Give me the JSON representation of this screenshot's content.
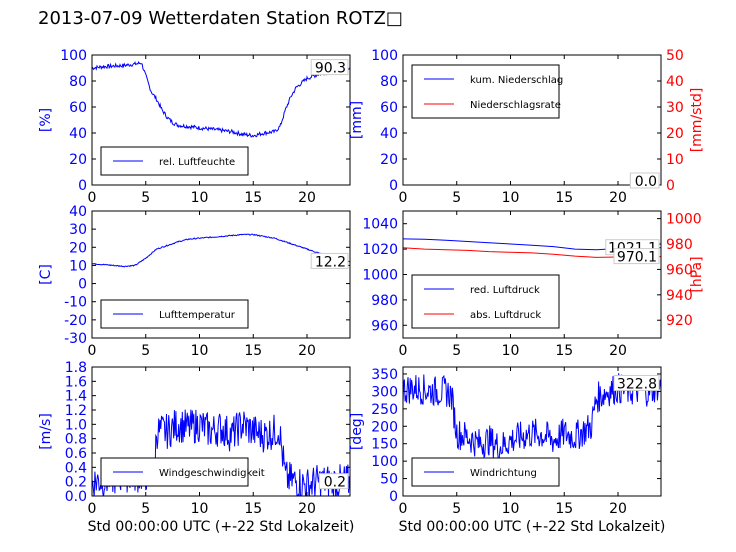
{
  "title": "2013-07-09 Wetterdaten Station ROTZ□",
  "colors": {
    "left": "#0000ff",
    "right": "#ff0000",
    "frame": "#000000"
  },
  "chart_data": [
    {
      "id": "humidity",
      "type": "line",
      "xlim": [
        0,
        24
      ],
      "xticks": [
        0,
        5,
        10,
        15,
        20
      ],
      "ylim": [
        0,
        100
      ],
      "yticks": [
        0,
        20,
        40,
        60,
        80,
        100
      ],
      "ylabel": "[%]",
      "xlabel": "",
      "annotation": "90.3",
      "legend_position": "lower-left",
      "series": [
        {
          "name": "rel. Luftfeuchte",
          "color": "#0000ff",
          "axis": "left",
          "noise": 1.5,
          "x": [
            0,
            1,
            2,
            3,
            4,
            4.6,
            5,
            5.5,
            6,
            6.5,
            7,
            7.5,
            8,
            9,
            10,
            11,
            12,
            13,
            14,
            15,
            16,
            17,
            17.5,
            18,
            18.5,
            19,
            20,
            21,
            22,
            23,
            24
          ],
          "y": [
            90,
            91,
            91.5,
            92,
            93,
            94,
            84,
            72,
            66,
            58,
            52,
            48,
            46,
            45,
            44,
            43,
            42,
            41,
            39,
            38,
            40,
            41,
            45,
            58,
            68,
            75,
            82,
            85,
            87,
            89,
            90.3
          ]
        }
      ]
    },
    {
      "id": "precip",
      "type": "line",
      "xlim": [
        0,
        24
      ],
      "xticks": [
        0,
        5,
        10,
        15,
        20
      ],
      "ylim": [
        0,
        100
      ],
      "yticks": [
        0,
        20,
        40,
        60,
        80,
        100
      ],
      "ylabel": "[mm]",
      "ylim_right": [
        0,
        50
      ],
      "yticks_right": [
        0,
        10,
        20,
        30,
        40,
        50
      ],
      "ylabel_right": "[mm/std]",
      "xlabel": "",
      "annotations": [
        "0.0",
        "0.0"
      ],
      "legend_position": "upper-left",
      "series": [
        {
          "name": "kum. Niederschlag",
          "color": "#0000ff",
          "axis": "left",
          "noise": 0,
          "x": [
            0,
            24
          ],
          "y": [
            0,
            0
          ]
        },
        {
          "name": "Niederschlagsrate",
          "color": "#ff0000",
          "axis": "right",
          "noise": 0,
          "x": [
            0,
            24
          ],
          "y": [
            0,
            0
          ]
        }
      ]
    },
    {
      "id": "temperature",
      "type": "line",
      "xlim": [
        0,
        24
      ],
      "xticks": [
        0,
        5,
        10,
        15,
        20
      ],
      "ylim": [
        -30,
        40
      ],
      "yticks": [
        -30,
        -20,
        -10,
        0,
        10,
        20,
        30,
        40
      ],
      "ylabel": "[C]",
      "xlabel": "",
      "annotation": "12.2",
      "legend_position": "lower-left",
      "series": [
        {
          "name": "Lufttemperatur",
          "color": "#0000ff",
          "axis": "left",
          "noise": 0.3,
          "x": [
            0,
            1,
            2,
            3,
            4,
            5,
            6,
            7,
            8,
            9,
            10,
            11,
            12,
            13,
            14,
            15,
            16,
            17,
            18,
            19,
            20,
            21,
            22,
            23,
            24
          ],
          "y": [
            11,
            10.5,
            10,
            9.5,
            10,
            14,
            19,
            21,
            23,
            24.5,
            25,
            25.5,
            26,
            26.5,
            27,
            27,
            26,
            25,
            23,
            21,
            19,
            17,
            15,
            13.5,
            12.2
          ]
        }
      ]
    },
    {
      "id": "pressure",
      "type": "line",
      "xlim": [
        0,
        24
      ],
      "xticks": [
        0,
        5,
        10,
        15,
        20
      ],
      "ylim": [
        950,
        1050
      ],
      "yticks": [
        960,
        980,
        1000,
        1020,
        1040
      ],
      "ylabel": "",
      "ylim_right": [
        906,
        1006
      ],
      "yticks_right": [
        920,
        940,
        960,
        980,
        1000
      ],
      "ylabel_right": "[hPa]",
      "xlabel": "",
      "annotations": [
        "1021.1",
        "970.1"
      ],
      "legend_position": "lower-left",
      "series": [
        {
          "name": "red. Luftdruck",
          "color": "#0000ff",
          "axis": "left",
          "noise": 0,
          "x": [
            0,
            2,
            4,
            6,
            8,
            10,
            12,
            14,
            16,
            18,
            20,
            22,
            24
          ],
          "y": [
            1028,
            1027.8,
            1027,
            1026,
            1025,
            1024,
            1023,
            1022,
            1020,
            1019.5,
            1020.5,
            1021,
            1021.1
          ]
        },
        {
          "name": "abs. Luftdruck",
          "color": "#ff0000",
          "axis": "right",
          "noise": 0,
          "x": [
            0,
            2,
            4,
            6,
            8,
            10,
            12,
            14,
            16,
            18,
            20,
            22,
            24
          ],
          "y": [
            977,
            976,
            975.5,
            975,
            974,
            973.5,
            973,
            972,
            970.5,
            969.5,
            969.8,
            970,
            970.1
          ]
        }
      ]
    },
    {
      "id": "windspeed",
      "type": "line",
      "xlim": [
        0,
        24
      ],
      "xticks": [
        0,
        5,
        10,
        15,
        20
      ],
      "ylim": [
        0,
        1.8
      ],
      "yticks": [
        0,
        0.2,
        0.4,
        0.6,
        0.8,
        1.0,
        1.2,
        1.4,
        1.6,
        1.8
      ],
      "ytick_labels": [
        "0.0",
        "0.2",
        "0.4",
        "0.6",
        "0.8",
        "1.0",
        "1.2",
        "1.4",
        "1.6",
        "1.8"
      ],
      "ylabel": "[m/s]",
      "xlabel": "Std 00:00:00 UTC (+-22 Std Lokalzeit)",
      "annotation": "0.2",
      "legend_position": "lower-left",
      "series": [
        {
          "name": "Windgeschwindigkeit",
          "color": "#0000ff",
          "axis": "left",
          "noise": 0.25,
          "x": [
            0,
            1,
            2,
            3,
            4,
            5,
            5.8,
            6,
            7,
            8,
            9,
            10,
            11,
            12,
            13,
            14,
            15,
            16,
            17,
            17.4,
            18,
            19,
            20,
            21,
            22,
            23,
            24
          ],
          "y": [
            0.2,
            0.22,
            0.25,
            0.3,
            0.28,
            0.3,
            0.35,
            0.9,
            0.9,
            1.0,
            0.95,
            1.0,
            0.9,
            0.95,
            0.85,
            1.0,
            0.9,
            0.85,
            0.9,
            0.95,
            0.25,
            0.2,
            0.15,
            0.2,
            0.2,
            0.2,
            0.2
          ]
        }
      ]
    },
    {
      "id": "winddir",
      "type": "line",
      "xlim": [
        0,
        24
      ],
      "xticks": [
        0,
        5,
        10,
        15,
        20
      ],
      "ylim": [
        0,
        370
      ],
      "yticks": [
        0,
        50,
        100,
        150,
        200,
        250,
        300,
        350
      ],
      "ylabel": "[deg]",
      "xlabel": "Std 00:00:00 UTC (+-22 Std Lokalzeit)",
      "annotation": "322.8",
      "legend_position": "lower-left",
      "series": [
        {
          "name": "Windrichtung",
          "color": "#0000ff",
          "axis": "left",
          "noise": 45,
          "x": [
            0,
            1,
            2,
            3,
            4,
            4.5,
            5,
            6,
            7,
            8,
            9,
            10,
            11,
            12,
            13,
            14,
            15,
            16,
            17,
            17.5,
            18,
            19,
            20,
            21,
            22,
            23,
            24
          ],
          "y": [
            305,
            310,
            305,
            300,
            300,
            290,
            180,
            170,
            150,
            160,
            140,
            160,
            170,
            180,
            175,
            160,
            180,
            170,
            190,
            200,
            280,
            300,
            310,
            300,
            305,
            300,
            322.8
          ]
        }
      ]
    }
  ]
}
